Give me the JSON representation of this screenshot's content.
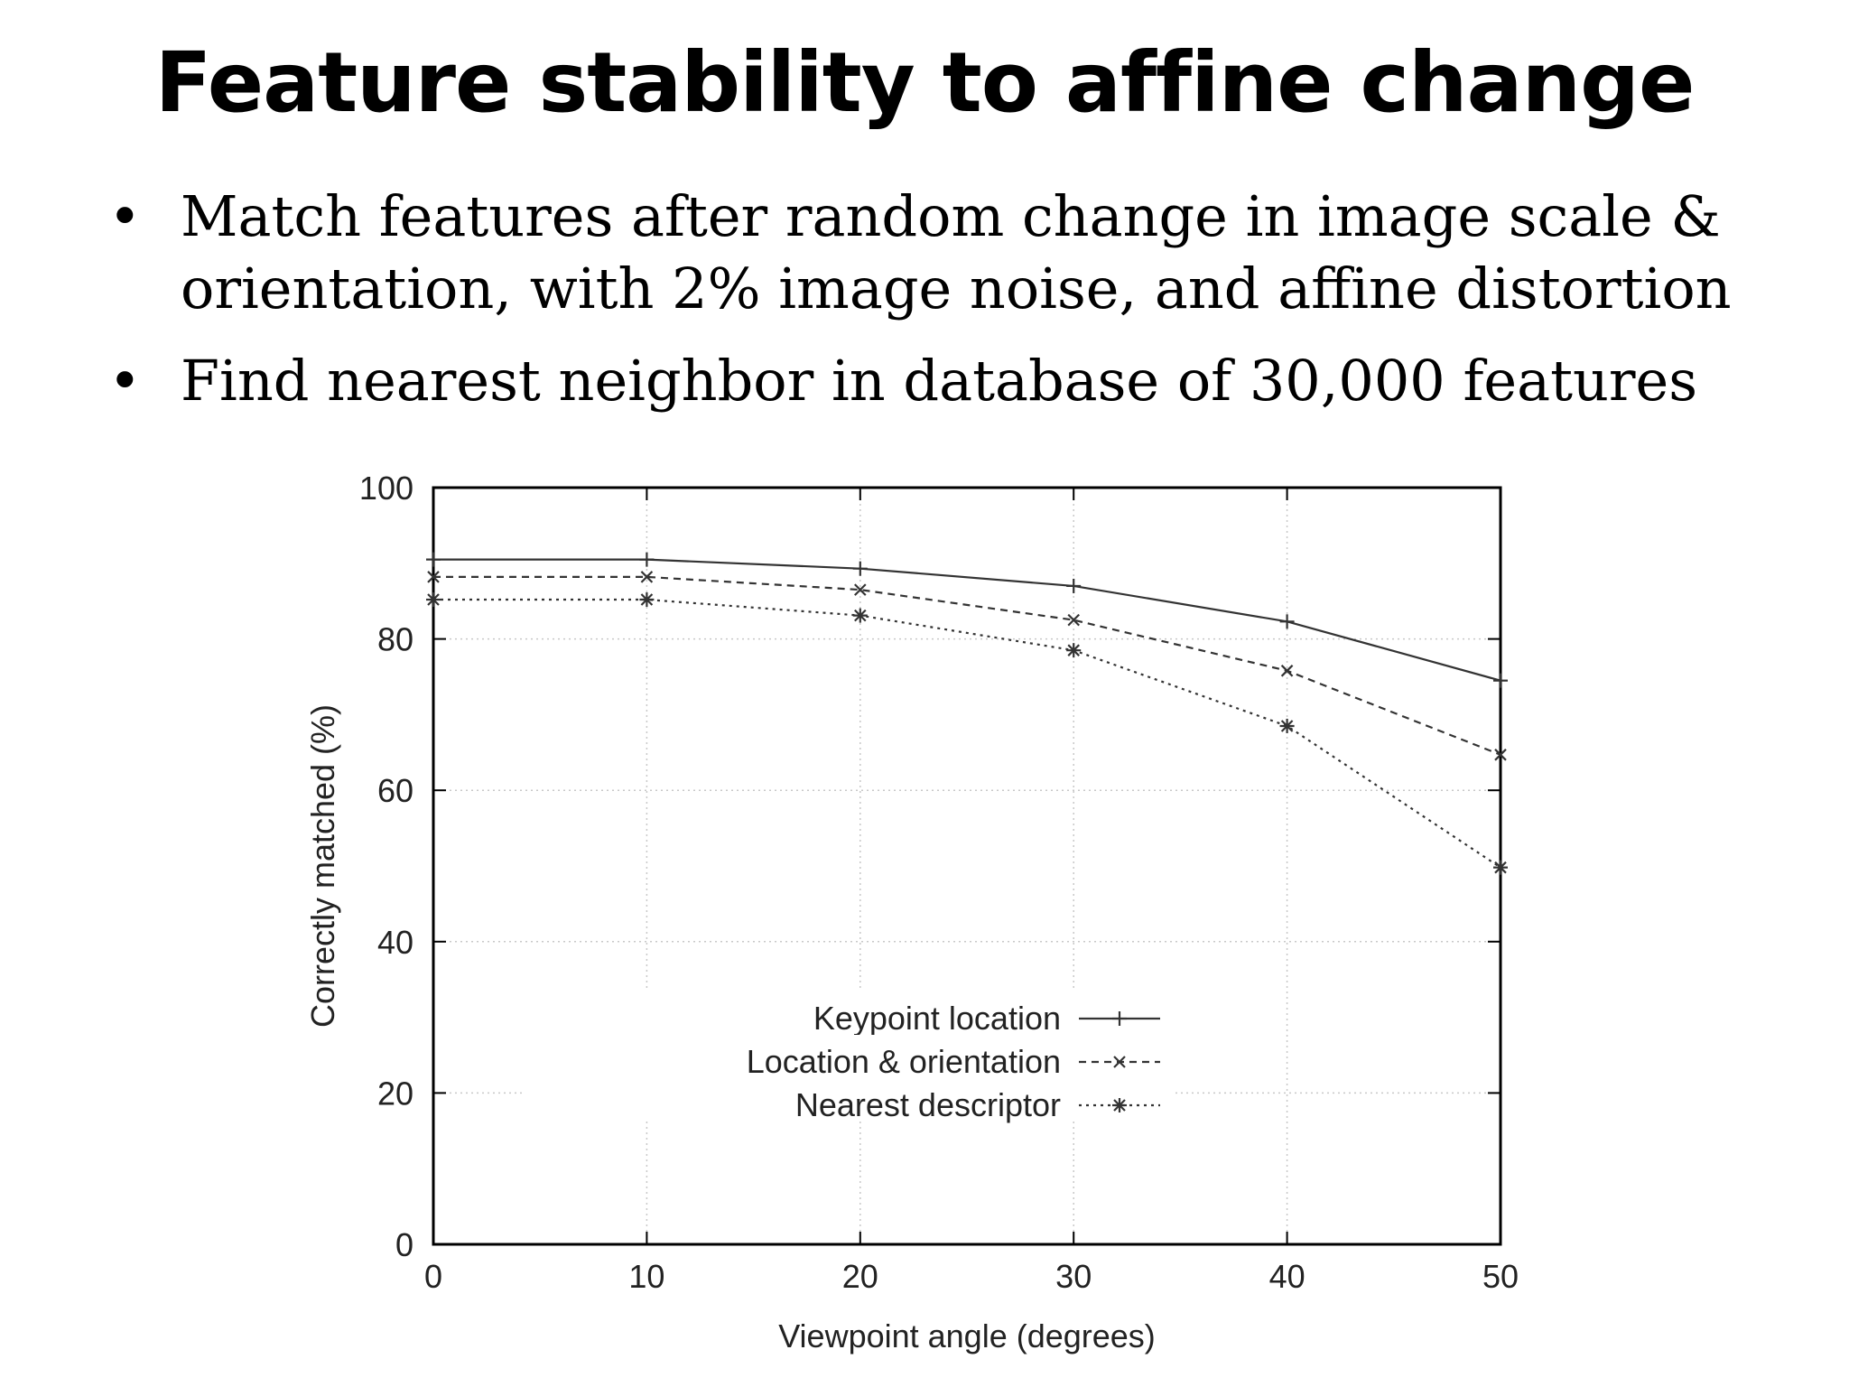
{
  "slide": {
    "title": "Feature stability to affine change",
    "bullets": [
      "Match features after random change in image scale & orientation, with 2% image noise, and affine distortion",
      "Find nearest neighbor in database of 30,000 features"
    ],
    "bullet_symbol": "•"
  },
  "chart_data": {
    "type": "line",
    "title": "",
    "xlabel": "Viewpoint angle (degrees)",
    "ylabel": "Correctly matched (%)",
    "xlim": [
      0,
      50
    ],
    "ylim": [
      0,
      100
    ],
    "xticks": [
      "0",
      "10",
      "20",
      "30",
      "40",
      "50"
    ],
    "yticks": [
      "0",
      "20",
      "40",
      "60",
      "80",
      "100"
    ],
    "grid": true,
    "legend_position": "lower-center",
    "x": [
      0,
      10,
      20,
      30,
      40,
      50
    ],
    "series": [
      {
        "name": "Keypoint location",
        "values": [
          90.5,
          90.5,
          89.3,
          87,
          82.3,
          74.5
        ],
        "marker": "plus",
        "dash": "solid"
      },
      {
        "name": "Location & orientation",
        "values": [
          88.2,
          88.2,
          86.5,
          82.5,
          75.8,
          64.7
        ],
        "marker": "x",
        "dash": "dashed"
      },
      {
        "name": "Nearest descriptor",
        "values": [
          85.2,
          85.2,
          83.1,
          78.5,
          68.5,
          49.8
        ],
        "marker": "star",
        "dash": "dotted"
      }
    ],
    "colors": {
      "line": "#333333",
      "axis": "#000000",
      "grid": "#c8c8c8"
    }
  }
}
